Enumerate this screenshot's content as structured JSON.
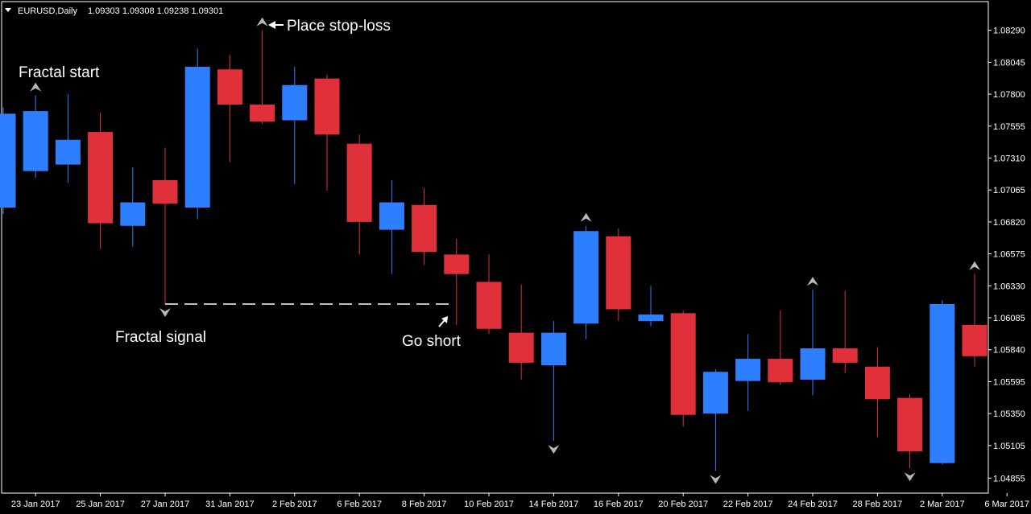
{
  "header": {
    "symbol_label": "EURUSD,Daily",
    "ohlc": "1.09303 1.09308 1.09238 1.09301"
  },
  "colors": {
    "background": "#000000",
    "frame": "#ffffff",
    "bull": "#2e7fff",
    "bear": "#e0303a",
    "fractal_marker": "#b8b8b8",
    "dashed_line": "#ffffff",
    "text": "#ffffff"
  },
  "chart_data": {
    "type": "candlestick",
    "title": "",
    "y_axis_side": "right",
    "y_ticks": [
      "1.04855",
      "1.05105",
      "1.05350",
      "1.05595",
      "1.05840",
      "1.06085",
      "1.06330",
      "1.06575",
      "1.06820",
      "1.07065",
      "1.07310",
      "1.07555",
      "1.07800",
      "1.08045",
      "1.08290"
    ],
    "ylim": [
      1.0474,
      1.0851
    ],
    "x_tick_labels": [
      "23 Jan 2017",
      "25 Jan 2017",
      "27 Jan 2017",
      "31 Jan 2017",
      "2 Feb 2017",
      "6 Feb 2017",
      "8 Feb 2017",
      "10 Feb 2017",
      "14 Feb 2017",
      "16 Feb 2017",
      "20 Feb 2017",
      "22 Feb 2017",
      "24 Feb 2017",
      "28 Feb 2017",
      "2 Mar 2017",
      "6 Mar 2017"
    ],
    "candles": [
      {
        "date": "20 Jan 2017",
        "open": 1.0693,
        "high": 1.077,
        "low": 1.0688,
        "close": 1.0765
      },
      {
        "date": "23 Jan 2017",
        "open": 1.0721,
        "high": 1.0779,
        "low": 1.0716,
        "close": 1.0767
      },
      {
        "date": "24 Jan 2017",
        "open": 1.0726,
        "high": 1.078,
        "low": 1.0712,
        "close": 1.0745
      },
      {
        "date": "25 Jan 2017",
        "open": 1.0751,
        "high": 1.0766,
        "low": 1.0661,
        "close": 1.0681
      },
      {
        "date": "26 Jan 2017",
        "open": 1.0679,
        "high": 1.0724,
        "low": 1.0663,
        "close": 1.0697
      },
      {
        "date": "27 Jan 2017",
        "open": 1.0714,
        "high": 1.0739,
        "low": 1.0619,
        "close": 1.0696
      },
      {
        "date": "30 Jan 2017",
        "open": 1.0693,
        "high": 1.0815,
        "low": 1.0684,
        "close": 1.0801
      },
      {
        "date": "31 Jan 2017",
        "open": 1.0799,
        "high": 1.081,
        "low": 1.0728,
        "close": 1.0772
      },
      {
        "date": "1 Feb 2017",
        "open": 1.0772,
        "high": 1.0829,
        "low": 1.0757,
        "close": 1.0759
      },
      {
        "date": "2 Feb 2017",
        "open": 1.076,
        "high": 1.0801,
        "low": 1.0711,
        "close": 1.0787
      },
      {
        "date": "3 Feb 2017",
        "open": 1.0792,
        "high": 1.0795,
        "low": 1.0706,
        "close": 1.0749
      },
      {
        "date": "6 Feb 2017",
        "open": 1.0742,
        "high": 1.0749,
        "low": 1.0657,
        "close": 1.0682
      },
      {
        "date": "7 Feb 2017",
        "open": 1.0676,
        "high": 1.0714,
        "low": 1.0642,
        "close": 1.0697
      },
      {
        "date": "8 Feb 2017",
        "open": 1.0695,
        "high": 1.0708,
        "low": 1.0649,
        "close": 1.0659
      },
      {
        "date": "9 Feb 2017",
        "open": 1.0657,
        "high": 1.0669,
        "low": 1.0603,
        "close": 1.0642
      },
      {
        "date": "10 Feb 2017",
        "open": 1.0636,
        "high": 1.0657,
        "low": 1.0596,
        "close": 1.06
      },
      {
        "date": "13 Feb 2017",
        "open": 1.0597,
        "high": 1.0634,
        "low": 1.0561,
        "close": 1.0574
      },
      {
        "date": "14 Feb 2017",
        "open": 1.0572,
        "high": 1.0606,
        "low": 1.0514,
        "close": 1.0597
      },
      {
        "date": "15 Feb 2017",
        "open": 1.0604,
        "high": 1.0679,
        "low": 1.0592,
        "close": 1.0675
      },
      {
        "date": "16 Feb 2017",
        "open": 1.0671,
        "high": 1.0677,
        "low": 1.0606,
        "close": 1.0615
      },
      {
        "date": "17 Feb 2017",
        "open": 1.0606,
        "high": 1.0633,
        "low": 1.0602,
        "close": 1.0611
      },
      {
        "date": "20 Feb 2017",
        "open": 1.0612,
        "high": 1.0614,
        "low": 1.0525,
        "close": 1.0534
      },
      {
        "date": "21 Feb 2017",
        "open": 1.0535,
        "high": 1.0569,
        "low": 1.0491,
        "close": 1.0567
      },
      {
        "date": "22 Feb 2017",
        "open": 1.056,
        "high": 1.0596,
        "low": 1.0537,
        "close": 1.0577
      },
      {
        "date": "23 Feb 2017",
        "open": 1.0577,
        "high": 1.0614,
        "low": 1.0557,
        "close": 1.0559
      },
      {
        "date": "24 Feb 2017",
        "open": 1.0561,
        "high": 1.063,
        "low": 1.0549,
        "close": 1.0585
      },
      {
        "date": "27 Feb 2017",
        "open": 1.0585,
        "high": 1.0629,
        "low": 1.0566,
        "close": 1.0574
      },
      {
        "date": "28 Feb 2017",
        "open": 1.0571,
        "high": 1.0586,
        "low": 1.0517,
        "close": 1.0546
      },
      {
        "date": "1 Mar 2017",
        "open": 1.0547,
        "high": 1.055,
        "low": 1.0493,
        "close": 1.0506
      },
      {
        "date": "2 Mar 2017",
        "open": 1.0497,
        "high": 1.0622,
        "low": 1.0496,
        "close": 1.0619
      },
      {
        "date": "3 Mar 2017",
        "open": 1.0603,
        "high": 1.0642,
        "low": 1.0571,
        "close": 1.0579
      }
    ],
    "fractals": [
      {
        "candle": 1,
        "type": "up"
      },
      {
        "candle": 5,
        "type": "down"
      },
      {
        "candle": 8,
        "type": "up"
      },
      {
        "candle": 17,
        "type": "down"
      },
      {
        "candle": 18,
        "type": "up"
      },
      {
        "candle": 22,
        "type": "down"
      },
      {
        "candle": 25,
        "type": "up"
      },
      {
        "candle": 28,
        "type": "down"
      },
      {
        "candle": 30,
        "type": "up"
      }
    ],
    "signal_line": {
      "from_candle": 5,
      "to_candle": 14,
      "price": 1.0619
    },
    "annotations": {
      "fractal_start": "Fractal start",
      "place_stop_loss": "Place stop-loss",
      "fractal_signal": "Fractal signal",
      "go_short": "Go short"
    }
  }
}
